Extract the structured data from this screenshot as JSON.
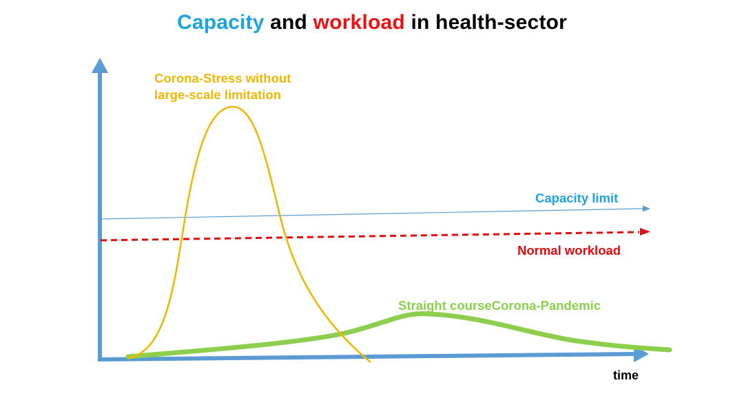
{
  "title": {
    "part1": "Capacity",
    "part2": " and ",
    "part3": "workload",
    "part4": " in health-sector"
  },
  "labels": {
    "corona_stress_line1": "Corona-Stress without",
    "corona_stress_line2": "large-scale limitation",
    "capacity_limit": "Capacity limit",
    "normal_workload": "Normal workload",
    "straight_course": "Straight courseCorona-Pandemic",
    "time": "time"
  },
  "colors": {
    "axis": "#5b9bd5",
    "capacity_title": "#1fa3e0",
    "workload_title": "#ee1111",
    "corona_stress_curve": "#f2b705",
    "capacity_line": "#5b9bd5",
    "normal_workload_line": "#e10c0c",
    "straight_course_curve": "#8ccf4d"
  }
}
